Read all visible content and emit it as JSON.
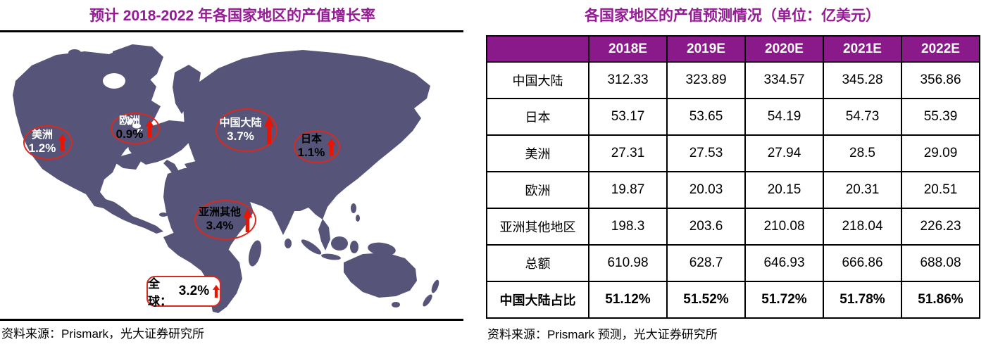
{
  "left_panel": {
    "title": "预计 2018-2022 年各国家地区的产值增长率",
    "source": "资料来源：Prismark，光大证券研究所",
    "annotations": [
      {
        "id": "americas",
        "label": "美洲",
        "value": "1.2%"
      },
      {
        "id": "europe",
        "label": "欧洲",
        "value": "0.9%"
      },
      {
        "id": "china",
        "label": "中国大陆",
        "value": "3.7%"
      },
      {
        "id": "japan",
        "label": "日本",
        "value": "1.1%"
      },
      {
        "id": "asia-other",
        "label": "亚洲其他",
        "value": "3.4%"
      },
      {
        "id": "global",
        "label": "全球：",
        "value": "3.2%"
      }
    ]
  },
  "right_panel": {
    "title": "各国家地区的产值预测情况（单位：亿美元）",
    "source": "资料来源：Prismark 预测，光大证券研究所",
    "table": {
      "columns": [
        "2018E",
        "2019E",
        "2020E",
        "2021E",
        "2022E"
      ],
      "rows": [
        {
          "label": "中国大陆",
          "values": [
            "312.33",
            "323.89",
            "334.57",
            "345.28",
            "356.86"
          ],
          "bold": false
        },
        {
          "label": "日本",
          "values": [
            "53.17",
            "53.65",
            "54.19",
            "54.73",
            "55.39"
          ],
          "bold": false
        },
        {
          "label": "美洲",
          "values": [
            "27.31",
            "27.53",
            "27.94",
            "28.5",
            "29.09"
          ],
          "bold": false
        },
        {
          "label": "欧洲",
          "values": [
            "19.87",
            "20.03",
            "20.15",
            "20.31",
            "20.51"
          ],
          "bold": false
        },
        {
          "label": "亚洲其他地区",
          "values": [
            "198.3",
            "203.6",
            "210.08",
            "218.04",
            "226.23"
          ],
          "bold": false
        },
        {
          "label": "总额",
          "values": [
            "610.98",
            "628.7",
            "646.93",
            "666.86",
            "688.08"
          ],
          "bold": false
        },
        {
          "label": "中国大陆占比",
          "values": [
            "51.12%",
            "51.52%",
            "51.72%",
            "51.78%",
            "51.86%"
          ],
          "bold": true
        }
      ]
    }
  },
  "colors": {
    "title_purple": "#951B95",
    "table_header_purple": "#8A1A8A",
    "map_land": "#565478",
    "annotation_red": "#D92A1E",
    "arrow_red": "#E81505"
  },
  "chart_data": [
    {
      "type": "table",
      "title": "预计 2018-2022 年各国家地区的产值增长率",
      "subtitle": "世界地图标注的产值增长率（红色上升箭头）",
      "categories": [
        "美洲",
        "欧洲",
        "中国大陆",
        "日本",
        "亚洲其他",
        "全球"
      ],
      "values": [
        1.2,
        0.9,
        3.7,
        1.1,
        3.4,
        3.2
      ],
      "unit": "%"
    },
    {
      "type": "table",
      "title": "各国家地区的产值预测情况（单位：亿美元）",
      "categories": [
        "2018E",
        "2019E",
        "2020E",
        "2021E",
        "2022E"
      ],
      "series": [
        {
          "name": "中国大陆",
          "values": [
            312.33,
            323.89,
            334.57,
            345.28,
            356.86
          ]
        },
        {
          "name": "日本",
          "values": [
            53.17,
            53.65,
            54.19,
            54.73,
            55.39
          ]
        },
        {
          "name": "美洲",
          "values": [
            27.31,
            27.53,
            27.94,
            28.5,
            29.09
          ]
        },
        {
          "name": "欧洲",
          "values": [
            19.87,
            20.03,
            20.15,
            20.31,
            20.51
          ]
        },
        {
          "name": "亚洲其他地区",
          "values": [
            198.3,
            203.6,
            210.08,
            218.04,
            226.23
          ]
        },
        {
          "name": "总额",
          "values": [
            610.98,
            628.7,
            646.93,
            666.86,
            688.08
          ]
        },
        {
          "name": "中国大陆占比",
          "values": [
            "51.12%",
            "51.52%",
            "51.72%",
            "51.78%",
            "51.86%"
          ]
        }
      ]
    }
  ]
}
